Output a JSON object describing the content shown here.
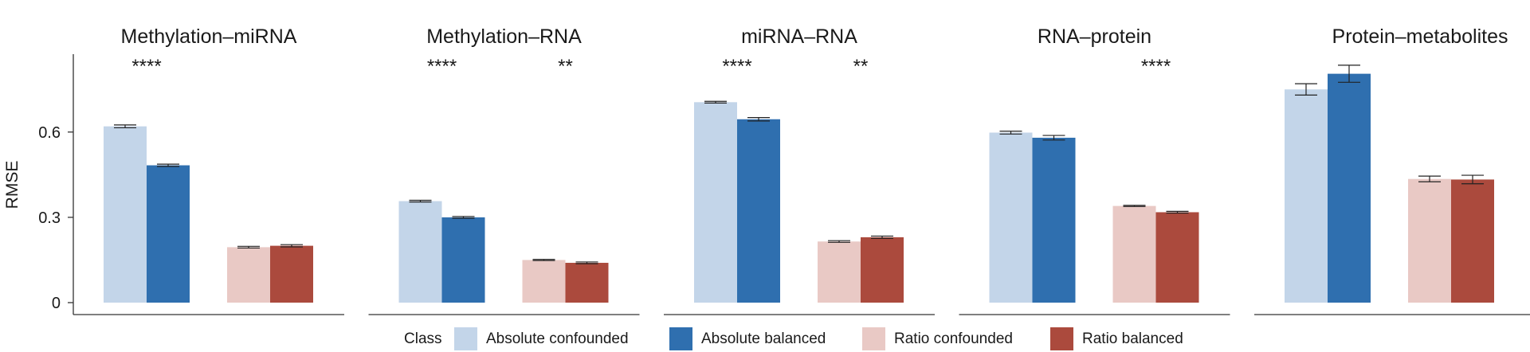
{
  "legend": {
    "title": "Class",
    "items": [
      {
        "label": "Absolute confounded",
        "color": "#c3d5e9"
      },
      {
        "label": "Absolute balanced",
        "color": "#2f6faf"
      },
      {
        "label": "Ratio confounded",
        "color": "#e9c9c5"
      },
      {
        "label": "Ratio balanced",
        "color": "#ab4a3d"
      }
    ]
  },
  "chart_data": {
    "type": "bar",
    "ylabel": "RMSE",
    "ylim": [
      0,
      0.88
    ],
    "yticks": [
      {
        "value": 0,
        "label": "0"
      },
      {
        "value": 0.3,
        "label": "0.3"
      },
      {
        "value": 0.6,
        "label": "0.6"
      }
    ],
    "series_names": [
      "Absolute confounded",
      "Absolute balanced",
      "Ratio confounded",
      "Ratio balanced"
    ],
    "colors": [
      "#c3d5e9",
      "#2f6faf",
      "#e9c9c5",
      "#ab4a3d"
    ],
    "panels": [
      {
        "title": "Methylation–miRNA",
        "values": [
          0.62,
          0.483,
          0.195,
          0.2
        ],
        "errors": [
          0.005,
          0.004,
          0.003,
          0.004
        ],
        "significance": {
          "absolute": "****",
          "ratio": ""
        }
      },
      {
        "title": "Methylation–RNA",
        "values": [
          0.357,
          0.3,
          0.15,
          0.14
        ],
        "errors": [
          0.003,
          0.003,
          0.002,
          0.003
        ],
        "significance": {
          "absolute": "****",
          "ratio": "**"
        }
      },
      {
        "title": "miRNA–RNA",
        "values": [
          0.705,
          0.645,
          0.215,
          0.23
        ],
        "errors": [
          0.003,
          0.006,
          0.003,
          0.004
        ],
        "significance": {
          "absolute": "****",
          "ratio": "**"
        }
      },
      {
        "title": "RNA–protein",
        "values": [
          0.598,
          0.58,
          0.34,
          0.318
        ],
        "errors": [
          0.005,
          0.008,
          0.002,
          0.003
        ],
        "significance": {
          "absolute": "",
          "ratio": "****"
        }
      },
      {
        "title": "Protein–metabolites",
        "values": [
          0.75,
          0.805,
          0.435,
          0.433
        ],
        "errors": [
          0.02,
          0.03,
          0.01,
          0.015
        ],
        "significance": {
          "absolute": "",
          "ratio": ""
        }
      }
    ]
  }
}
